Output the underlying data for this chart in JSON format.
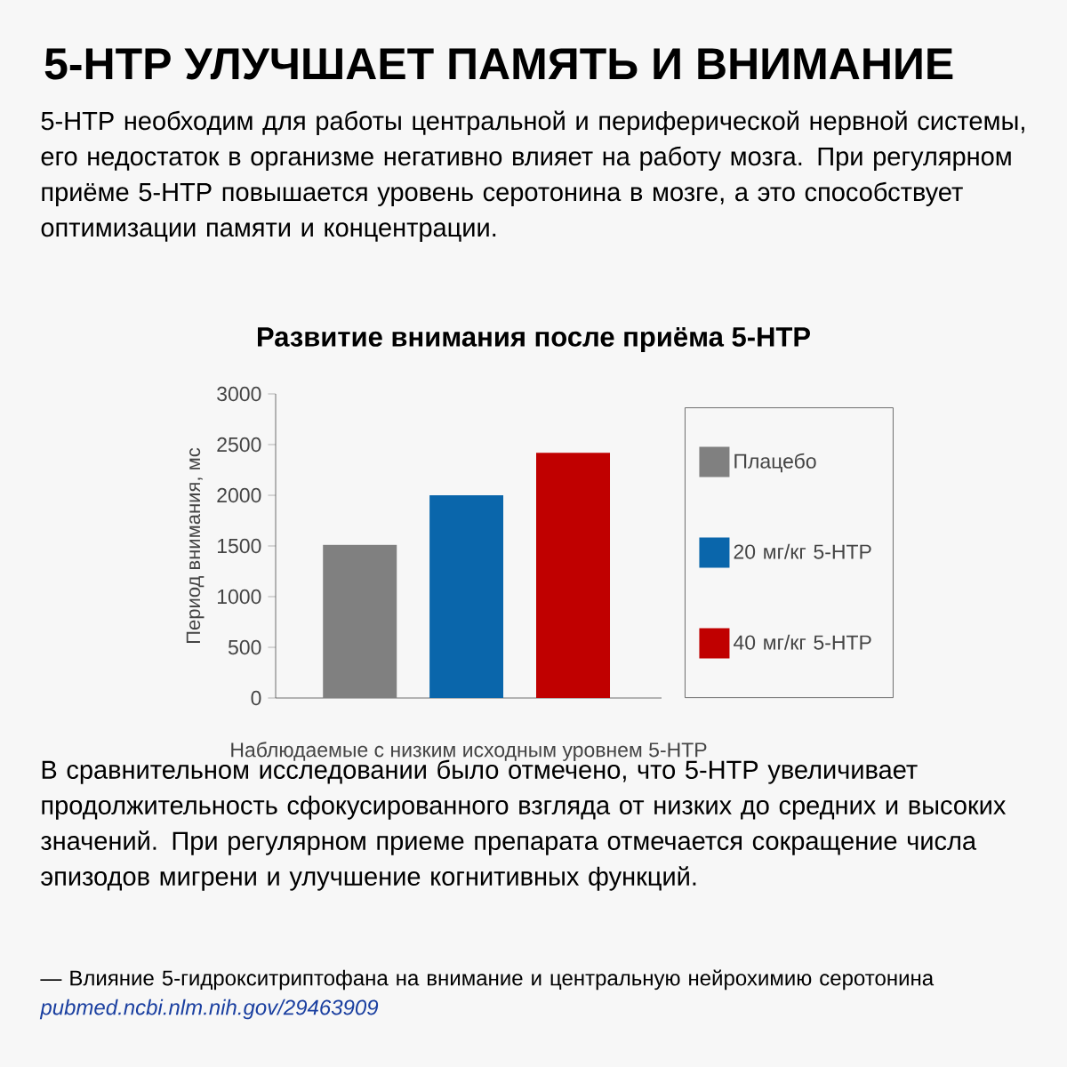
{
  "chart_data": {
    "type": "bar",
    "title": "5-HTP УЛУЧШАЕТ ПАМЯТЬ И ВНИМАНИЕ",
    "subtitle": "Развитие внимания после приёма 5-HTP",
    "annotations": [
      "5-HTP необходим для работы центральной и периферической нервной системы, его недостаток в организме негативно влияет на работу мозга. При регулярном приёме 5-HTP повышается уровень серотонина в мозге, а это способствует оптимизации памяти и концентрации.",
      "В сравнительном исследовании было отмечено, что 5-HTP увеличивает продолжительность сфокусированного взгляда от низких до средних и высоких значений. При регулярном приеме препарата отмечается сокращение числа эпизодов мигрени и улучшение когнитивных функций.",
      "— Влияние 5-гидрокситриптофана на внимание и центральную нейрохимию серотонина",
      "pubmed.ncbi.nlm.nih.gov/29463909"
    ],
    "ylabel": "Период внимания, мс",
    "xlabel": "Наблюдаемые с низким исходным уровнем 5-HTP",
    "categories": [
      null,
      null,
      null
    ],
    "series": [
      {
        "name": "Плацебо",
        "color": "#808080",
        "values": [
          1510,
          null,
          null
        ]
      },
      {
        "name": "20 мг/кг 5-HTP",
        "color": "#0a66ab",
        "values": [
          null,
          2000,
          null
        ]
      },
      {
        "name": "40 мг/кг 5-HTP",
        "color": "#c00000",
        "values": [
          null,
          null,
          2420
        ]
      }
    ],
    "ylim": [
      0,
      3000
    ],
    "yticks": [
      0,
      500,
      1000,
      1500,
      2000,
      2500,
      3000
    ],
    "legend": "right"
  }
}
